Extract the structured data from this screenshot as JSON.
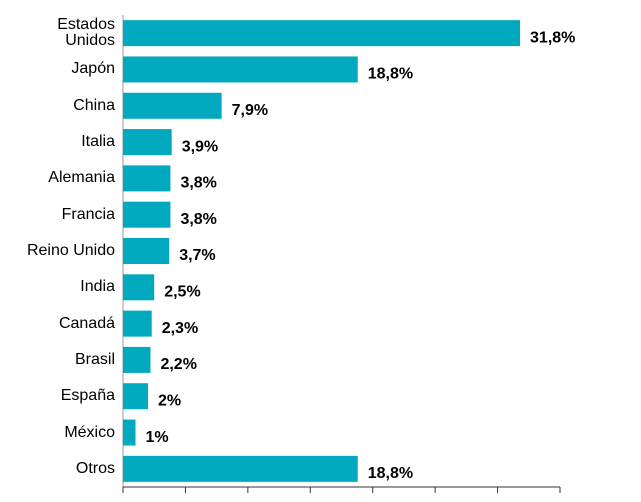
{
  "chart_data": {
    "type": "bar",
    "orientation": "horizontal",
    "categories": [
      "Estados Unidos",
      "Japón",
      "China",
      "Italia",
      "Alemania",
      "Francia",
      "Reino Unido",
      "India",
      "Canadá",
      "Brasil",
      "España",
      "México",
      "Otros"
    ],
    "values": [
      31.8,
      18.8,
      7.9,
      3.9,
      3.8,
      3.8,
      3.7,
      2.5,
      2.3,
      2.2,
      2,
      1,
      18.8
    ],
    "value_labels": [
      "31,8%",
      "18,8%",
      "7,9%",
      "3,9%",
      "3,8%",
      "3,8%",
      "3,7%",
      "2,5%",
      "2,3%",
      "2,2%",
      "2%",
      "1%",
      "18,8%"
    ],
    "color": "#00a9be",
    "xlim": [
      0,
      35
    ],
    "xticks": [
      0,
      5,
      10,
      15,
      20,
      25,
      30,
      35
    ]
  }
}
